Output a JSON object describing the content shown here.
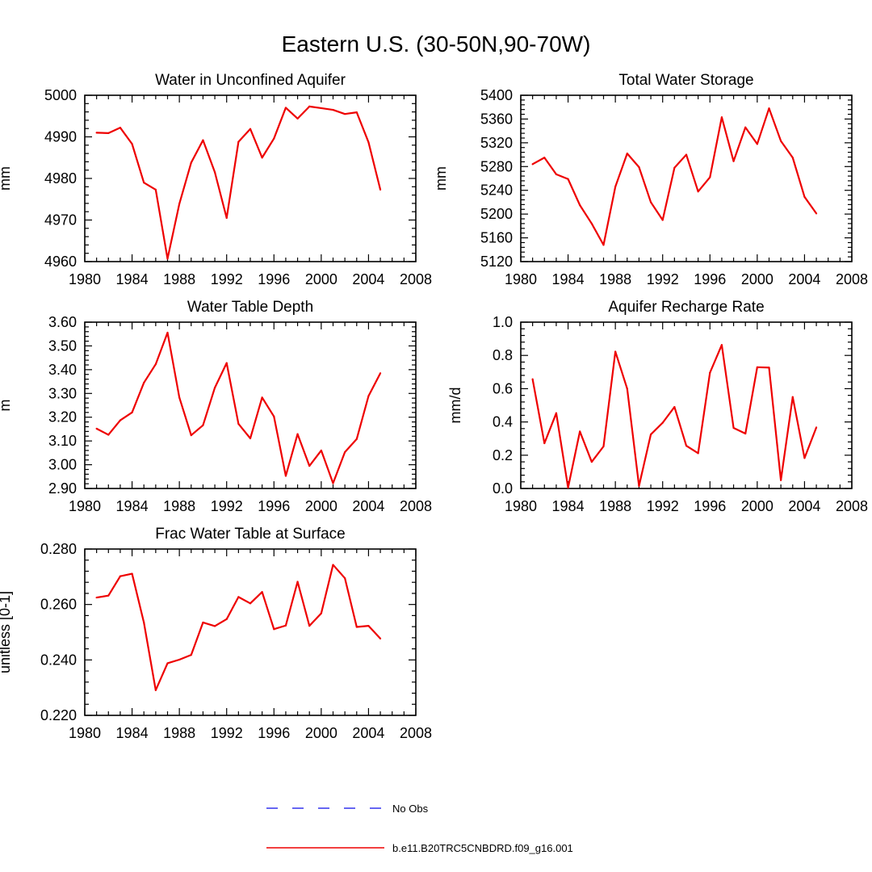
{
  "title": "Eastern U.S. (30-50N,90-70W)",
  "colors": {
    "series": "#ee0000",
    "obs": "#3333ee",
    "axis": "#000000"
  },
  "legend": {
    "entries": [
      {
        "label": "No Obs",
        "style": "dashed",
        "color": "#3333ee"
      },
      {
        "label": "b.e11.B20TRC5CNBDRD.f09_g16.001",
        "style": "solid",
        "color": "#ee0000"
      }
    ]
  },
  "chart_data": [
    {
      "type": "line",
      "title": "Water in Unconfined Aquifer",
      "ylabel": "mm",
      "xlim": [
        1980,
        2008
      ],
      "xticks": [
        1980,
        1984,
        1988,
        1992,
        1996,
        2000,
        2004,
        2008
      ],
      "ylim": [
        4960,
        5000
      ],
      "yticks": [
        4960,
        4970,
        4980,
        4990,
        5000
      ],
      "ytick_labels": [
        "4960",
        "4970",
        "4980",
        "4990",
        "5000"
      ],
      "x": [
        1981,
        1982,
        1983,
        1984,
        1985,
        1986,
        1987,
        1988,
        1989,
        1990,
        1991,
        1992,
        1993,
        1994,
        1995,
        1996,
        1997,
        1998,
        1999,
        2000,
        2001,
        2002,
        2003,
        2004,
        2005
      ],
      "values": [
        4991,
        4990.9,
        4992.2,
        4988.3,
        4979,
        4977.3,
        4960.7,
        4973.9,
        4983.8,
        4989.2,
        4981.5,
        4970.5,
        4988.8,
        4991.9,
        4985,
        4989.6,
        4997,
        4994.4,
        4997.3,
        4996.9,
        4996.5,
        4995.5,
        4995.9,
        4988.7,
        4977.3
      ]
    },
    {
      "type": "line",
      "title": "Total Water Storage",
      "ylabel": "mm",
      "xlim": [
        1980,
        2008
      ],
      "xticks": [
        1980,
        1984,
        1988,
        1992,
        1996,
        2000,
        2004,
        2008
      ],
      "ylim": [
        5120,
        5400
      ],
      "yticks": [
        5120,
        5160,
        5200,
        5240,
        5280,
        5320,
        5360,
        5400
      ],
      "ytick_labels": [
        "5120",
        "5160",
        "5200",
        "5240",
        "5280",
        "5320",
        "5360",
        "5400"
      ],
      "x": [
        1981,
        1982,
        1983,
        1984,
        1985,
        1986,
        1987,
        1988,
        1989,
        1990,
        1991,
        1992,
        1993,
        1994,
        1995,
        1996,
        1997,
        1998,
        1999,
        2000,
        2001,
        2002,
        2003,
        2004,
        2005
      ],
      "values": [
        5284,
        5295,
        5267,
        5259,
        5215,
        5184,
        5148,
        5246,
        5302,
        5279,
        5220,
        5190,
        5278,
        5300,
        5238,
        5262,
        5363,
        5289,
        5346,
        5318,
        5378,
        5323,
        5295,
        5229,
        5201
      ]
    },
    {
      "type": "line",
      "title": "Water Table Depth",
      "ylabel": "m",
      "xlim": [
        1980,
        2008
      ],
      "xticks": [
        1980,
        1984,
        1988,
        1992,
        1996,
        2000,
        2004,
        2008
      ],
      "ylim": [
        2.9,
        3.6
      ],
      "yticks": [
        2.9,
        3.0,
        3.1,
        3.2,
        3.3,
        3.4,
        3.5,
        3.6
      ],
      "ytick_labels": [
        "2.90",
        "3.00",
        "3.10",
        "3.20",
        "3.30",
        "3.40",
        "3.50",
        "3.60"
      ],
      "x": [
        1981,
        1982,
        1983,
        1984,
        1985,
        1986,
        1987,
        1988,
        1989,
        1990,
        1991,
        1992,
        1993,
        1994,
        1995,
        1996,
        1997,
        1998,
        1999,
        2000,
        2001,
        2002,
        2003,
        2004,
        2005
      ],
      "values": [
        3.152,
        3.126,
        3.187,
        3.22,
        3.345,
        3.423,
        3.556,
        3.283,
        3.124,
        3.166,
        3.324,
        3.428,
        3.172,
        3.111,
        3.283,
        3.203,
        2.953,
        3.129,
        2.995,
        3.06,
        2.922,
        3.053,
        3.108,
        3.289,
        3.385
      ]
    },
    {
      "type": "line",
      "title": "Aquifer Recharge Rate",
      "ylabel": "mm/d",
      "xlim": [
        1980,
        2008
      ],
      "xticks": [
        1980,
        1984,
        1988,
        1992,
        1996,
        2000,
        2004,
        2008
      ],
      "ylim": [
        0.0,
        1.0
      ],
      "yticks": [
        0.0,
        0.2,
        0.4,
        0.6,
        0.8,
        1.0
      ],
      "ytick_labels": [
        "0.0",
        "0.2",
        "0.4",
        "0.6",
        "0.8",
        "1.0"
      ],
      "x": [
        1981,
        1982,
        1983,
        1984,
        1985,
        1986,
        1987,
        1988,
        1989,
        1990,
        1991,
        1992,
        1993,
        1994,
        1995,
        1996,
        1997,
        1998,
        1999,
        2000,
        2001,
        2002,
        2003,
        2004,
        2005
      ],
      "values": [
        0.657,
        0.272,
        0.453,
        0.005,
        0.343,
        0.16,
        0.253,
        0.823,
        0.6,
        0.015,
        0.325,
        0.395,
        0.49,
        0.257,
        0.212,
        0.696,
        0.863,
        0.364,
        0.33,
        0.729,
        0.727,
        0.05,
        0.55,
        0.183,
        0.367
      ]
    },
    {
      "type": "line",
      "title": "Frac Water Table at Surface",
      "ylabel": "unitless [0-1]",
      "xlim": [
        1980,
        2008
      ],
      "xticks": [
        1980,
        1984,
        1988,
        1992,
        1996,
        2000,
        2004,
        2008
      ],
      "ylim": [
        0.22,
        0.28
      ],
      "yticks": [
        0.22,
        0.24,
        0.26,
        0.28
      ],
      "ytick_labels": [
        "0.220",
        "0.240",
        "0.260",
        "0.280"
      ],
      "x": [
        1981,
        1982,
        1983,
        1984,
        1985,
        1986,
        1987,
        1988,
        1989,
        1990,
        1991,
        1992,
        1993,
        1994,
        1995,
        1996,
        1997,
        1998,
        1999,
        2000,
        2001,
        2002,
        2003,
        2004,
        2005
      ],
      "values": [
        0.2625,
        0.2632,
        0.2702,
        0.2711,
        0.2535,
        0.2291,
        0.2388,
        0.2401,
        0.2418,
        0.2535,
        0.2522,
        0.2547,
        0.2627,
        0.2604,
        0.2645,
        0.2511,
        0.2524,
        0.2682,
        0.2523,
        0.2568,
        0.2743,
        0.2695,
        0.2519,
        0.2523,
        0.2477
      ]
    }
  ]
}
